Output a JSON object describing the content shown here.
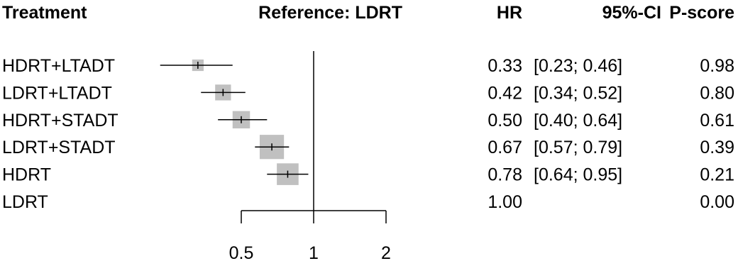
{
  "chart_data": {
    "type": "forest",
    "headers": {
      "treatment": "Treatment",
      "reference": "Reference: LDRT",
      "hr": "HR",
      "ci": "95%-CI",
      "pscore": "P-score"
    },
    "rows": [
      {
        "treatment": "HDRT+LTADT",
        "hr": 0.33,
        "lower": 0.23,
        "upper": 0.46,
        "hr_text": "0.33",
        "ci_text": "[0.23; 0.46]",
        "pscore_text": "0.98"
      },
      {
        "treatment": "LDRT+LTADT",
        "hr": 0.42,
        "lower": 0.34,
        "upper": 0.52,
        "hr_text": "0.42",
        "ci_text": "[0.34; 0.52]",
        "pscore_text": "0.80"
      },
      {
        "treatment": "HDRT+STADT",
        "hr": 0.5,
        "lower": 0.4,
        "upper": 0.64,
        "hr_text": "0.50",
        "ci_text": "[0.40; 0.64]",
        "pscore_text": "0.61"
      },
      {
        "treatment": "LDRT+STADT",
        "hr": 0.67,
        "lower": 0.57,
        "upper": 0.79,
        "hr_text": "0.67",
        "ci_text": "[0.57; 0.79]",
        "pscore_text": "0.39"
      },
      {
        "treatment": "HDRT",
        "hr": 0.78,
        "lower": 0.64,
        "upper": 0.95,
        "hr_text": "0.78",
        "ci_text": "[0.64; 0.95]",
        "pscore_text": "0.21"
      },
      {
        "treatment": "LDRT",
        "hr": 1.0,
        "lower": null,
        "upper": null,
        "hr_text": "1.00",
        "ci_text": "",
        "pscore_text": "0.00"
      }
    ],
    "box_weights": [
      0.45,
      0.62,
      0.68,
      0.95,
      0.85,
      0
    ],
    "x_scale": "log",
    "x_ticks": [
      0.5,
      1,
      2
    ],
    "x_tick_labels": [
      "0.5",
      "1",
      "2"
    ],
    "reference_value": 1,
    "colors": {
      "box": "#c0c0c0",
      "line": "#000000"
    }
  }
}
